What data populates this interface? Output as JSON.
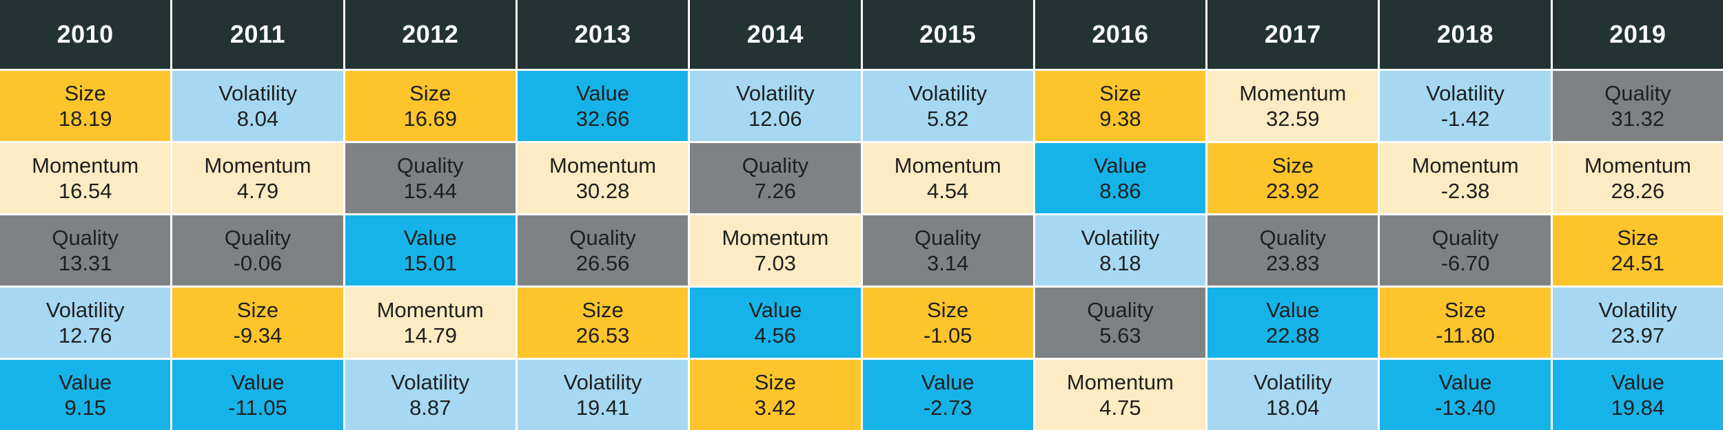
{
  "colors": {
    "header_bg": "#233232",
    "header_text": "#ffffff",
    "Size": "#FDC42C",
    "Momentum": "#FDEBC3",
    "Quality": "#7F8285",
    "Volatility": "#A6D8F2",
    "Value": "#16B3E8"
  },
  "chart_data": {
    "type": "table",
    "columns": [
      "2010",
      "2011",
      "2012",
      "2013",
      "2014",
      "2015",
      "2016",
      "2017",
      "2018",
      "2019"
    ],
    "years": [
      {
        "year": "2010",
        "ranks": [
          {
            "factor": "Size",
            "value": "18.19"
          },
          {
            "factor": "Momentum",
            "value": "16.54"
          },
          {
            "factor": "Quality",
            "value": "13.31"
          },
          {
            "factor": "Volatility",
            "value": "12.76"
          },
          {
            "factor": "Value",
            "value": "9.15"
          }
        ]
      },
      {
        "year": "2011",
        "ranks": [
          {
            "factor": "Volatility",
            "value": "8.04"
          },
          {
            "factor": "Momentum",
            "value": "4.79"
          },
          {
            "factor": "Quality",
            "value": "-0.06"
          },
          {
            "factor": "Size",
            "value": "-9.34"
          },
          {
            "factor": "Value",
            "value": "-11.05"
          }
        ]
      },
      {
        "year": "2012",
        "ranks": [
          {
            "factor": "Size",
            "value": "16.69"
          },
          {
            "factor": "Quality",
            "value": "15.44"
          },
          {
            "factor": "Value",
            "value": "15.01"
          },
          {
            "factor": "Momentum",
            "value": "14.79"
          },
          {
            "factor": "Volatility",
            "value": "8.87"
          }
        ]
      },
      {
        "year": "2013",
        "ranks": [
          {
            "factor": "Value",
            "value": "32.66"
          },
          {
            "factor": "Momentum",
            "value": "30.28"
          },
          {
            "factor": "Quality",
            "value": "26.56"
          },
          {
            "factor": "Size",
            "value": "26.53"
          },
          {
            "factor": "Volatility",
            "value": "19.41"
          }
        ]
      },
      {
        "year": "2014",
        "ranks": [
          {
            "factor": "Volatility",
            "value": "12.06"
          },
          {
            "factor": "Quality",
            "value": "7.26"
          },
          {
            "factor": "Momentum",
            "value": "7.03"
          },
          {
            "factor": "Value",
            "value": "4.56"
          },
          {
            "factor": "Size",
            "value": "3.42"
          }
        ]
      },
      {
        "year": "2015",
        "ranks": [
          {
            "factor": "Volatility",
            "value": "5.82"
          },
          {
            "factor": "Momentum",
            "value": "4.54"
          },
          {
            "factor": "Quality",
            "value": "3.14"
          },
          {
            "factor": "Size",
            "value": "-1.05"
          },
          {
            "factor": "Value",
            "value": "-2.73"
          }
        ]
      },
      {
        "year": "2016",
        "ranks": [
          {
            "factor": "Size",
            "value": "9.38"
          },
          {
            "factor": "Value",
            "value": "8.86"
          },
          {
            "factor": "Volatility",
            "value": "8.18"
          },
          {
            "factor": "Quality",
            "value": "5.63"
          },
          {
            "factor": "Momentum",
            "value": "4.75"
          }
        ]
      },
      {
        "year": "2017",
        "ranks": [
          {
            "factor": "Momentum",
            "value": "32.59"
          },
          {
            "factor": "Size",
            "value": "23.92"
          },
          {
            "factor": "Quality",
            "value": "23.83"
          },
          {
            "factor": "Value",
            "value": "22.88"
          },
          {
            "factor": "Volatility",
            "value": "18.04"
          }
        ]
      },
      {
        "year": "2018",
        "ranks": [
          {
            "factor": "Volatility",
            "value": "-1.42"
          },
          {
            "factor": "Momentum",
            "value": "-2.38"
          },
          {
            "factor": "Quality",
            "value": "-6.70"
          },
          {
            "factor": "Size",
            "value": "-11.80"
          },
          {
            "factor": "Value",
            "value": "-13.40"
          }
        ]
      },
      {
        "year": "2019",
        "ranks": [
          {
            "factor": "Quality",
            "value": "31.32"
          },
          {
            "factor": "Momentum",
            "value": "28.26"
          },
          {
            "factor": "Size",
            "value": "24.51"
          },
          {
            "factor": "Volatility",
            "value": "23.97"
          },
          {
            "factor": "Value",
            "value": "19.84"
          }
        ]
      }
    ]
  }
}
